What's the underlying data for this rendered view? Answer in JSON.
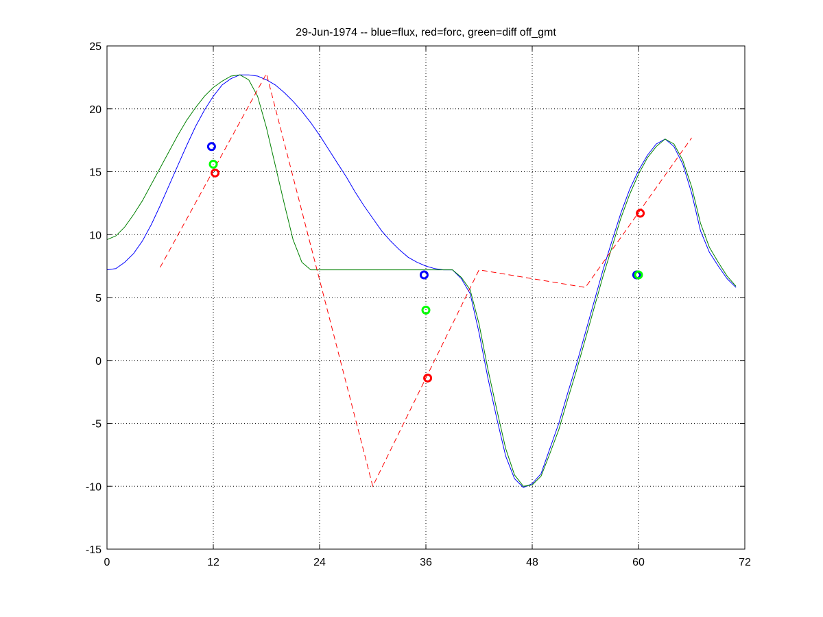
{
  "chart_data": {
    "type": "line",
    "title": "29-Jun-1974 -- blue=flux, red=forc, green=diff off_gmt",
    "xlabel": "",
    "ylabel": "",
    "xlim": [
      0,
      72
    ],
    "ylim": [
      -15,
      25
    ],
    "xticks": [
      0,
      12,
      24,
      36,
      48,
      60,
      72
    ],
    "yticks": [
      -15,
      -10,
      -5,
      0,
      5,
      10,
      15,
      20,
      25
    ],
    "grid": true,
    "series": [
      {
        "name": "flux",
        "color": "#0000ff",
        "style": "solid",
        "x": [
          0,
          1,
          2,
          3,
          4,
          5,
          6,
          7,
          8,
          9,
          10,
          11,
          12,
          13,
          14,
          15,
          16,
          17,
          18,
          19,
          20,
          21,
          22,
          23,
          24,
          25,
          26,
          27,
          28,
          29,
          30,
          31,
          32,
          33,
          34,
          35,
          36,
          37,
          38,
          39,
          40,
          41,
          42,
          43,
          44,
          45,
          46,
          47,
          48,
          49,
          50,
          51,
          52,
          53,
          54,
          55,
          56,
          57,
          58,
          59,
          60,
          61,
          62,
          63,
          64,
          65,
          66,
          67,
          68,
          69,
          70,
          71
        ],
        "y": [
          7.2,
          7.3,
          7.8,
          8.5,
          9.5,
          10.8,
          12.3,
          13.9,
          15.5,
          17.1,
          18.6,
          19.9,
          21.0,
          21.9,
          22.4,
          22.7,
          22.7,
          22.6,
          22.3,
          21.9,
          21.3,
          20.6,
          19.8,
          18.9,
          17.9,
          16.8,
          15.7,
          14.6,
          13.4,
          12.3,
          11.3,
          10.3,
          9.5,
          8.8,
          8.2,
          7.8,
          7.5,
          7.3,
          7.2,
          7.2,
          6.5,
          5.3,
          2.2,
          -1.4,
          -4.6,
          -7.6,
          -9.4,
          -10.1,
          -9.8,
          -9.0,
          -7.0,
          -5.0,
          -2.6,
          -0.3,
          2.2,
          4.7,
          7.2,
          9.5,
          11.7,
          13.6,
          15.1,
          16.3,
          17.2,
          17.6,
          17.0,
          15.6,
          13.3,
          10.3,
          8.6,
          7.5,
          6.5,
          5.8
        ]
      },
      {
        "name": "diff off_gmt",
        "color": "#008000",
        "style": "solid",
        "x": [
          0,
          1,
          2,
          3,
          4,
          5,
          6,
          7,
          8,
          9,
          10,
          11,
          12,
          13,
          14,
          15,
          16,
          17,
          18,
          19,
          20,
          21,
          22,
          23,
          24,
          25,
          26,
          27,
          28,
          29,
          30,
          31,
          32,
          33,
          34,
          35,
          36,
          37,
          38,
          39,
          40,
          41,
          42,
          43,
          44,
          45,
          46,
          47,
          48,
          49,
          50,
          51,
          52,
          53,
          54,
          55,
          56,
          57,
          58,
          59,
          60,
          61,
          62,
          63,
          64,
          65,
          66,
          67,
          68,
          69,
          70,
          71
        ],
        "y": [
          9.6,
          9.9,
          10.6,
          11.6,
          12.7,
          14.0,
          15.3,
          16.6,
          17.9,
          19.1,
          20.1,
          21.0,
          21.7,
          22.2,
          22.6,
          22.7,
          22.3,
          21.0,
          18.5,
          15.5,
          12.5,
          9.6,
          7.8,
          7.2,
          7.2,
          7.2,
          7.2,
          7.2,
          7.2,
          7.2,
          7.2,
          7.2,
          7.2,
          7.2,
          7.2,
          7.2,
          7.2,
          7.2,
          7.2,
          7.2,
          6.6,
          5.6,
          2.9,
          -0.7,
          -3.9,
          -7.0,
          -9.1,
          -10.0,
          -9.9,
          -9.2,
          -7.4,
          -5.5,
          -3.1,
          -0.8,
          1.7,
          4.2,
          6.7,
          9.0,
          11.3,
          13.2,
          14.8,
          16.1,
          17.0,
          17.6,
          17.2,
          15.9,
          13.8,
          10.9,
          9.0,
          7.8,
          6.7,
          5.9
        ]
      },
      {
        "name": "forc",
        "color": "#ff0000",
        "style": "dashed",
        "x": [
          6,
          18,
          30,
          42,
          54,
          66
        ],
        "y": [
          7.4,
          22.8,
          -10.0,
          7.2,
          5.8,
          17.7
        ]
      }
    ],
    "markers": [
      {
        "name": "flux",
        "color": "#0000ff",
        "x": [
          11.8,
          35.8,
          59.8
        ],
        "y": [
          17.0,
          6.8,
          6.8
        ]
      },
      {
        "name": "diff off_gmt",
        "color": "#00ff00",
        "x": [
          12.0,
          36.0,
          60.0
        ],
        "y": [
          15.6,
          4.0,
          6.8
        ]
      },
      {
        "name": "forc",
        "color": "#ff0000",
        "x": [
          12.2,
          36.2,
          60.2
        ],
        "y": [
          14.9,
          -1.4,
          11.7
        ]
      }
    ]
  }
}
